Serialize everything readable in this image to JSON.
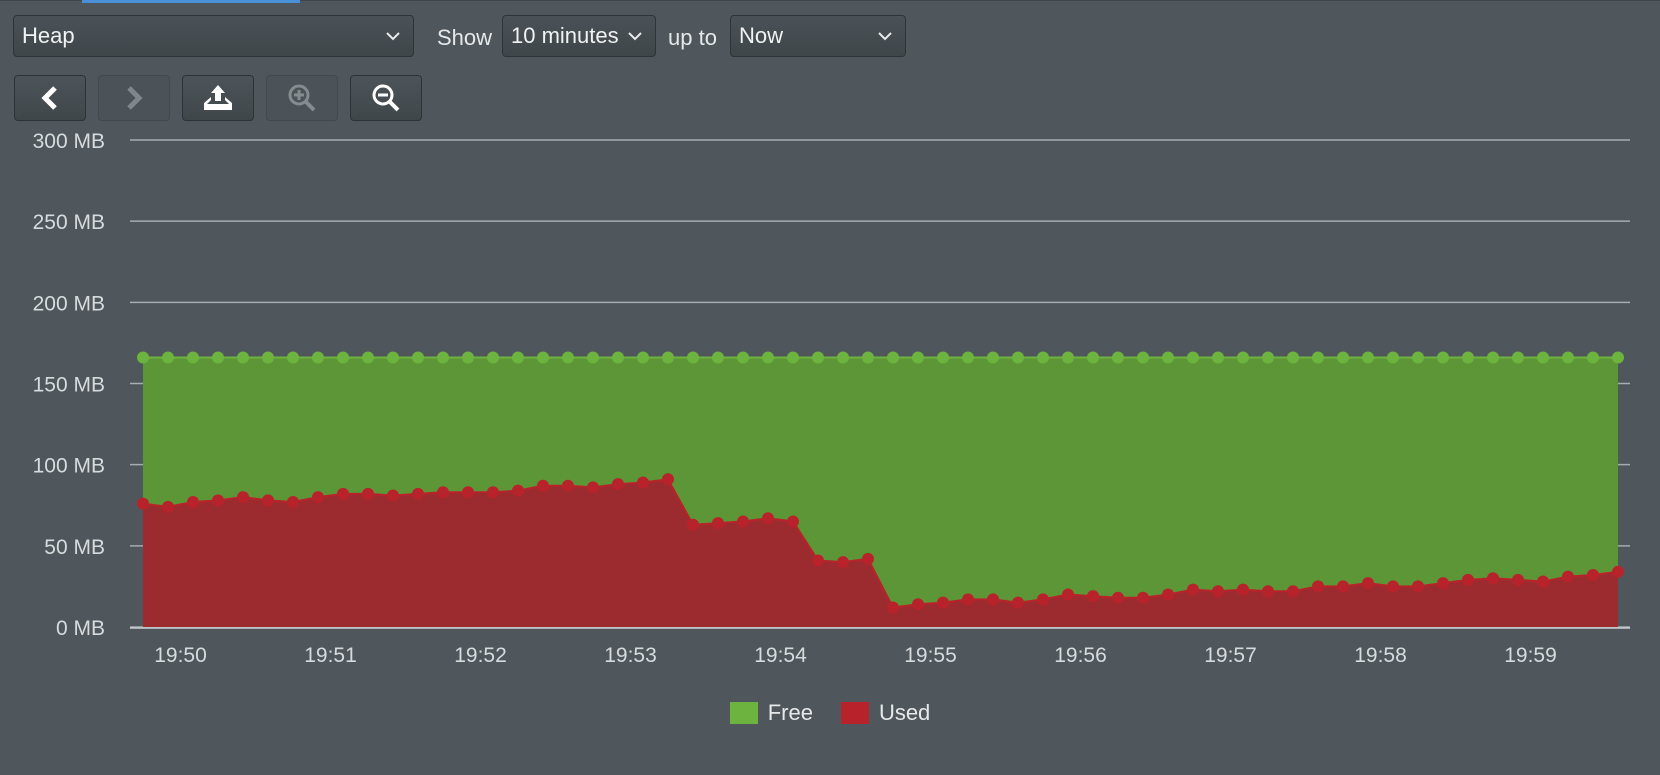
{
  "toolbar": {
    "metric_select": {
      "value": "Heap"
    },
    "show_label": "Show",
    "range_select": {
      "value": "10 minutes"
    },
    "upto_label": "up to",
    "end_select": {
      "value": "Now"
    }
  },
  "buttons": [
    {
      "name": "back-button",
      "icon": "chevron-left-icon",
      "enabled": true
    },
    {
      "name": "forward-button",
      "icon": "chevron-right-icon",
      "enabled": false
    },
    {
      "name": "export-button",
      "icon": "upload-icon",
      "enabled": true
    },
    {
      "name": "zoom-in-button",
      "icon": "zoom-in-icon",
      "enabled": false
    },
    {
      "name": "zoom-out-button",
      "icon": "zoom-out-icon",
      "enabled": true
    }
  ],
  "colors": {
    "free": "#5d9636",
    "free_line": "#6db33f",
    "used": "#9c2b2f",
    "used_line": "#b8232b",
    "grid": "#b5bcc0",
    "background": "#4f575c"
  },
  "chart_data": {
    "type": "area",
    "stacked": true,
    "y_ticks": [
      "0 MB",
      "50 MB",
      "100 MB",
      "150 MB",
      "200 MB",
      "250 MB",
      "300 MB"
    ],
    "ylim": [
      0,
      300
    ],
    "y_unit": "MB",
    "x_ticks": [
      "19:50",
      "19:51",
      "19:52",
      "19:53",
      "19:54",
      "19:55",
      "19:56",
      "19:57",
      "19:58",
      "19:59"
    ],
    "x_start": "19:49:45",
    "x_step_seconds": 10,
    "grid": true,
    "legend_position": "bottom-center",
    "series": [
      {
        "name": "Free",
        "total_heap_values": [
          166,
          166,
          166,
          166,
          166,
          166,
          166,
          166,
          166,
          166,
          166,
          166,
          166,
          166,
          166,
          166,
          166,
          166,
          166,
          166,
          166,
          166,
          166,
          166,
          166,
          166,
          166,
          166,
          166,
          166,
          166,
          166,
          166,
          166,
          166,
          166,
          166,
          166,
          166,
          166,
          166,
          166,
          166,
          166,
          166,
          166,
          166,
          166,
          166,
          166,
          166,
          166,
          166,
          166,
          166,
          166,
          166,
          166,
          166,
          166
        ]
      },
      {
        "name": "Used",
        "values": [
          76,
          74,
          77,
          78,
          80,
          78,
          77,
          80,
          82,
          82,
          81,
          82,
          83,
          83,
          83,
          84,
          87,
          87,
          86,
          88,
          89,
          91,
          63,
          64,
          65,
          67,
          65,
          41,
          40,
          42,
          12,
          14,
          15,
          17,
          17,
          15,
          17,
          20,
          19,
          18,
          18,
          20,
          23,
          22,
          23,
          22,
          22,
          25,
          25,
          27,
          25,
          25,
          27,
          29,
          30,
          29,
          28,
          31,
          32,
          34
        ]
      }
    ]
  },
  "legend": [
    {
      "label": "Free",
      "color": "#6db33f"
    },
    {
      "label": "Used",
      "color": "#b8232b"
    }
  ]
}
